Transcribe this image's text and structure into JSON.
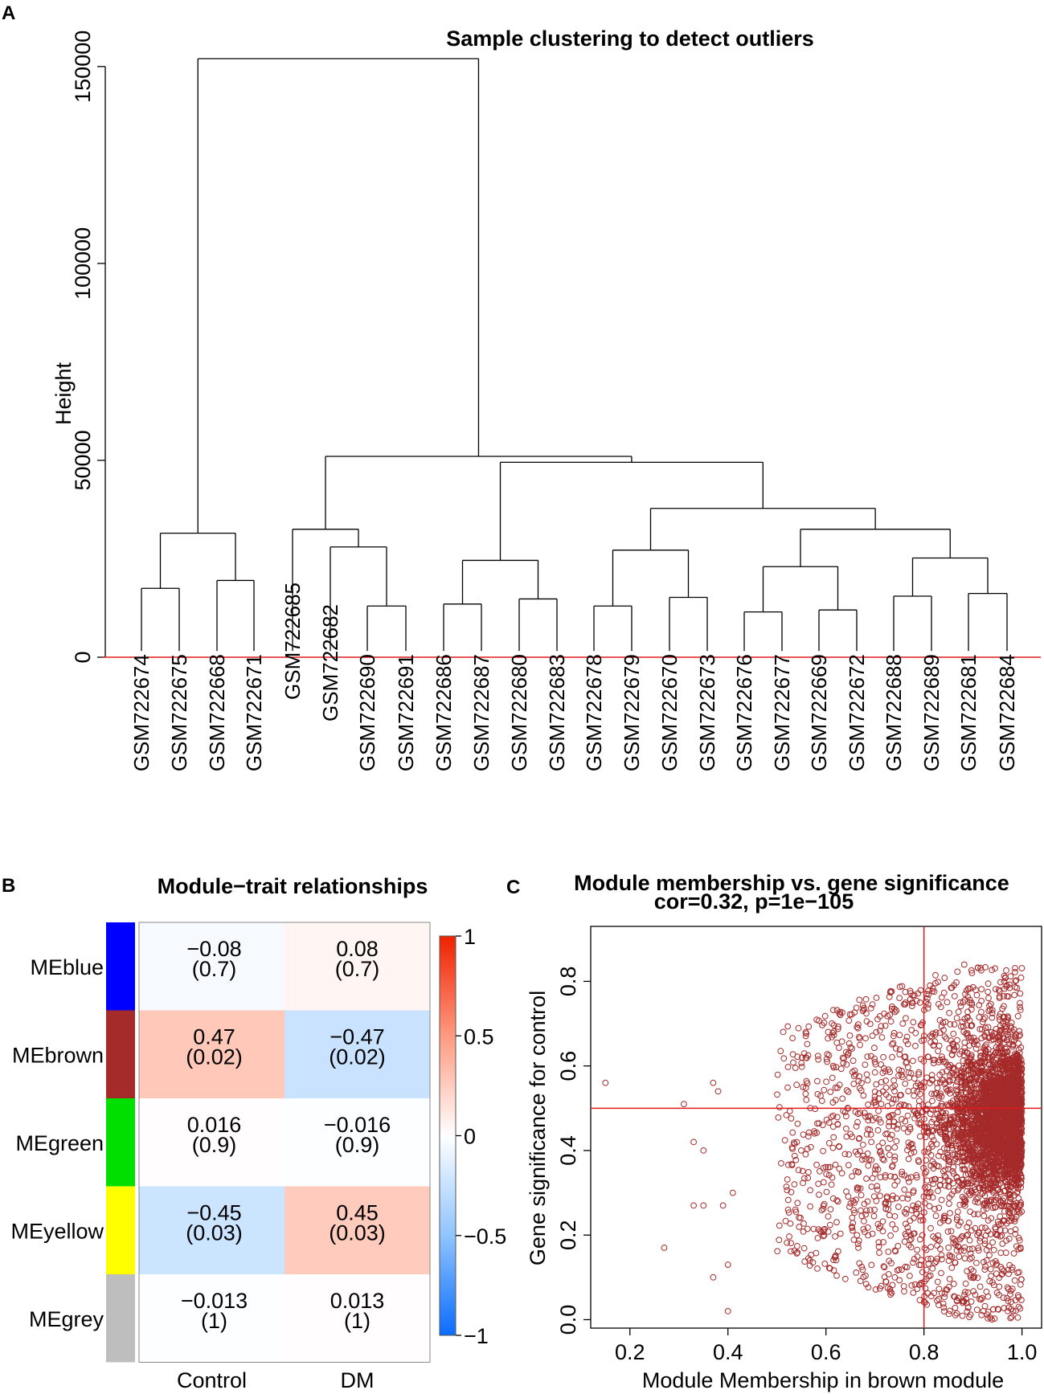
{
  "panels": {
    "a": "A",
    "b": "B",
    "c": "C"
  },
  "chart_data": [
    {
      "type": "dendrogram",
      "title": "Sample clustering to detect outliers",
      "ylabel": "Height",
      "xlabel": "",
      "ylim": [
        0,
        152000
      ],
      "yticks": [
        0,
        50000,
        100000,
        150000
      ],
      "cut_height": 0,
      "leaves": [
        "GSM722674",
        "GSM722675",
        "GSM722668",
        "GSM722671",
        "GSM722685",
        "GSM722682",
        "GSM722690",
        "GSM722691",
        "GSM722686",
        "GSM722687",
        "GSM722680",
        "GSM722683",
        "GSM722678",
        "GSM722679",
        "GSM722670",
        "GSM722673",
        "GSM722676",
        "GSM722677",
        "GSM722669",
        "GSM722672",
        "GSM722688",
        "GSM722689",
        "GSM722681",
        "GSM722684"
      ],
      "merges": [
        {
          "id": "a1",
          "children": [
            "GSM722674",
            "GSM722675"
          ],
          "height": 17500
        },
        {
          "id": "a2",
          "children": [
            "GSM722668",
            "GSM722671"
          ],
          "height": 19500
        },
        {
          "id": "a3",
          "children": [
            "a1",
            "a2"
          ],
          "height": 31500
        },
        {
          "id": "b1",
          "children": [
            "GSM722690",
            "GSM722691"
          ],
          "height": 13000
        },
        {
          "id": "b2",
          "children": [
            "GSM722682",
            "b1"
          ],
          "height": 28000
        },
        {
          "id": "b3",
          "children": [
            "GSM722685",
            "b2"
          ],
          "height": 32500
        },
        {
          "id": "c1",
          "children": [
            "GSM722686",
            "GSM722687"
          ],
          "height": 13500
        },
        {
          "id": "c2",
          "children": [
            "GSM722680",
            "GSM722683"
          ],
          "height": 14800
        },
        {
          "id": "c3",
          "children": [
            "c1",
            "c2"
          ],
          "height": 24600
        },
        {
          "id": "d1",
          "children": [
            "GSM722678",
            "GSM722679"
          ],
          "height": 13000
        },
        {
          "id": "d2",
          "children": [
            "GSM722670",
            "GSM722673"
          ],
          "height": 15200
        },
        {
          "id": "d3",
          "children": [
            "d1",
            "d2"
          ],
          "height": 27200
        },
        {
          "id": "e1",
          "children": [
            "GSM722676",
            "GSM722677"
          ],
          "height": 11500
        },
        {
          "id": "e2",
          "children": [
            "GSM722669",
            "GSM722672"
          ],
          "height": 12000
        },
        {
          "id": "e3",
          "children": [
            "e1",
            "e2"
          ],
          "height": 23000
        },
        {
          "id": "f1",
          "children": [
            "GSM722688",
            "GSM722689"
          ],
          "height": 15500
        },
        {
          "id": "f2",
          "children": [
            "GSM722681",
            "GSM722684"
          ],
          "height": 16200
        },
        {
          "id": "f3",
          "children": [
            "f1",
            "f2"
          ],
          "height": 25200
        },
        {
          "id": "g1",
          "children": [
            "e3",
            "f3"
          ],
          "height": 32500
        },
        {
          "id": "g2",
          "children": [
            "d3",
            "g1"
          ],
          "height": 37800
        },
        {
          "id": "g3",
          "children": [
            "c3",
            "g2"
          ],
          "height": 49500
        },
        {
          "id": "h1",
          "children": [
            "b3",
            "g3"
          ],
          "height": 51000
        },
        {
          "id": "root",
          "children": [
            "a3",
            "h1"
          ],
          "height": 152000
        }
      ]
    },
    {
      "type": "heatmap",
      "title": "Module−trait relationships",
      "columns": [
        "Control",
        "DM"
      ],
      "rows": [
        "MEblue",
        "MEbrown",
        "MEgreen",
        "MEyellow",
        "MEgrey"
      ],
      "row_colors": [
        "#0000ff",
        "#a52a2a",
        "#00e000",
        "#ffff00",
        "#bebebe"
      ],
      "values": [
        [
          -0.08,
          0.08
        ],
        [
          0.47,
          -0.47
        ],
        [
          0.016,
          -0.016
        ],
        [
          -0.45,
          0.45
        ],
        [
          -0.013,
          0.013
        ]
      ],
      "labels": [
        [
          "−0.08",
          "0.08"
        ],
        [
          "0.47",
          "−0.47"
        ],
        [
          "0.016",
          "−0.016"
        ],
        [
          "−0.45",
          "0.45"
        ],
        [
          "−0.013",
          "0.013"
        ]
      ],
      "pvalues": [
        [
          "(0.7)",
          "(0.7)"
        ],
        [
          "(0.02)",
          "(0.02)"
        ],
        [
          "(0.9)",
          "(0.9)"
        ],
        [
          "(0.03)",
          "(0.03)"
        ],
        [
          "(1)",
          "(1)"
        ]
      ],
      "colorbar": {
        "range": [
          -1,
          1
        ],
        "ticks": [
          "1",
          "0.5",
          "0",
          "−0.5",
          "−1"
        ],
        "tick_values": [
          1,
          0.5,
          0,
          -0.5,
          -1
        ]
      }
    },
    {
      "type": "scatter",
      "title": "Module membership vs. gene significance",
      "subtitle": "cor=0.32, p=1e−105",
      "xlabel": "Module Membership in brown module",
      "ylabel": "Gene significance for  control",
      "xlim": [
        0.12,
        1.04
      ],
      "ylim": [
        -0.02,
        0.93
      ],
      "xticks": [
        "0.2",
        "0.4",
        "0.6",
        "0.8",
        "1.0"
      ],
      "yticks": [
        "0.0",
        "0.2",
        "0.4",
        "0.6",
        "0.8"
      ],
      "reference_lines": {
        "x": 0.8,
        "y": 0.5
      },
      "marker_color": "#a52a2a",
      "line_color": "#e31a1c",
      "outliers": [
        [
          0.15,
          0.56
        ],
        [
          0.31,
          0.51
        ],
        [
          0.37,
          0.56
        ],
        [
          0.38,
          0.54
        ],
        [
          0.33,
          0.42
        ],
        [
          0.35,
          0.4
        ],
        [
          0.33,
          0.27
        ],
        [
          0.35,
          0.27
        ],
        [
          0.37,
          0.1
        ],
        [
          0.39,
          0.27
        ],
        [
          0.27,
          0.17
        ],
        [
          0.4,
          0.13
        ],
        [
          0.41,
          0.3
        ],
        [
          0.4,
          0.02
        ]
      ],
      "n_points_approx": 4000,
      "distribution_note": "dense cloud from MM 0.45 to 1.0, GS 0.0 to 0.9, concentrated near MM 0.95-1.0, GS 0.4-0.6"
    }
  ]
}
